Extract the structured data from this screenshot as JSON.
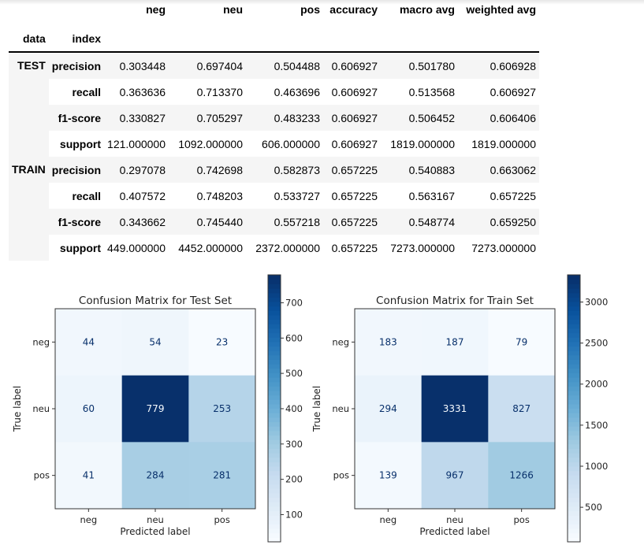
{
  "table": {
    "columns": [
      "neg",
      "neu",
      "pos",
      "accuracy",
      "macro avg",
      "weighted avg"
    ],
    "index_names": [
      "data",
      "index"
    ],
    "groups": [
      {
        "name": "TEST",
        "rows": [
          {
            "index": "precision",
            "values": [
              "0.303448",
              "0.697404",
              "0.504488",
              "0.606927",
              "0.501780",
              "0.606928"
            ]
          },
          {
            "index": "recall",
            "values": [
              "0.363636",
              "0.713370",
              "0.463696",
              "0.606927",
              "0.513568",
              "0.606927"
            ]
          },
          {
            "index": "f1-score",
            "values": [
              "0.330827",
              "0.705297",
              "0.483233",
              "0.606927",
              "0.506452",
              "0.606406"
            ]
          },
          {
            "index": "support",
            "values": [
              "121.000000",
              "1092.000000",
              "606.000000",
              "0.606927",
              "1819.000000",
              "1819.000000"
            ]
          }
        ]
      },
      {
        "name": "TRAIN",
        "rows": [
          {
            "index": "precision",
            "values": [
              "0.297078",
              "0.742698",
              "0.582873",
              "0.657225",
              "0.540883",
              "0.663062"
            ]
          },
          {
            "index": "recall",
            "values": [
              "0.407572",
              "0.748203",
              "0.533727",
              "0.657225",
              "0.563167",
              "0.657225"
            ]
          },
          {
            "index": "f1-score",
            "values": [
              "0.343662",
              "0.745440",
              "0.557218",
              "0.657225",
              "0.548774",
              "0.659250"
            ]
          },
          {
            "index": "support",
            "values": [
              "449.000000",
              "4452.000000",
              "2372.000000",
              "0.657225",
              "7273.000000",
              "7273.000000"
            ]
          }
        ]
      }
    ]
  },
  "chart_data": [
    {
      "type": "heatmap",
      "title": "Confusion Matrix for Test Set",
      "xlabel": "Predicted label",
      "ylabel": "True label",
      "x_categories": [
        "neg",
        "neu",
        "pos"
      ],
      "y_categories": [
        "neg",
        "neu",
        "pos"
      ],
      "values": [
        [
          44,
          54,
          23
        ],
        [
          60,
          779,
          253
        ],
        [
          41,
          284,
          281
        ]
      ],
      "colormap": "Blues",
      "colorbar_ticks": [
        100,
        200,
        300,
        400,
        500,
        600,
        700
      ],
      "colorbar_range": [
        23,
        779
      ]
    },
    {
      "type": "heatmap",
      "title": "Confusion Matrix for Train Set",
      "xlabel": "Predicted label",
      "ylabel": "True label",
      "x_categories": [
        "neg",
        "neu",
        "pos"
      ],
      "y_categories": [
        "neg",
        "neu",
        "pos"
      ],
      "values": [
        [
          183,
          187,
          79
        ],
        [
          294,
          3331,
          827
        ],
        [
          139,
          967,
          1266
        ]
      ],
      "colormap": "Blues",
      "colorbar_ticks": [
        500,
        1000,
        1500,
        2000,
        2500,
        3000
      ],
      "colorbar_range": [
        79,
        3331
      ]
    }
  ]
}
